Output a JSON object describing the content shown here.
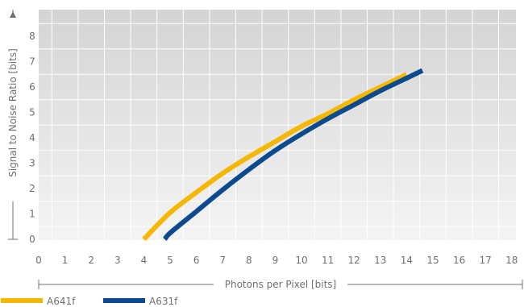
{
  "chart_data": {
    "type": "line",
    "title": "",
    "xlabel": "Photons per Pixel [bits]",
    "ylabel": "Signal to Noise Ratio [bits]",
    "xlim": [
      0,
      18.5
    ],
    "ylim": [
      0,
      9
    ],
    "x_ticks": [
      0,
      1,
      2,
      3,
      4,
      5,
      6,
      7,
      8,
      9,
      10,
      11,
      12,
      13,
      14,
      15,
      16,
      17,
      18
    ],
    "y_ticks": [
      0,
      1,
      2,
      3,
      4,
      5,
      6,
      7,
      8
    ],
    "grid": true,
    "legend_position": "bottom-left",
    "series": [
      {
        "name": "A641f",
        "color": "#f5b700",
        "x": [
          4.0,
          5.0,
          6.0,
          7.0,
          8.0,
          9.0,
          10.0,
          11.0,
          12.0,
          13.0,
          14.0
        ],
        "y": [
          0.0,
          1.05,
          1.85,
          2.6,
          3.25,
          3.85,
          4.45,
          4.95,
          5.5,
          6.0,
          6.5
        ]
      },
      {
        "name": "A631f",
        "color": "#0b4a8f",
        "x": [
          4.8,
          5.0,
          6.0,
          7.0,
          8.0,
          9.0,
          10.0,
          11.0,
          12.0,
          13.0,
          14.0,
          14.6
        ],
        "y": [
          0.0,
          0.25,
          1.1,
          1.95,
          2.75,
          3.5,
          4.15,
          4.75,
          5.3,
          5.85,
          6.35,
          6.65
        ]
      }
    ]
  }
}
